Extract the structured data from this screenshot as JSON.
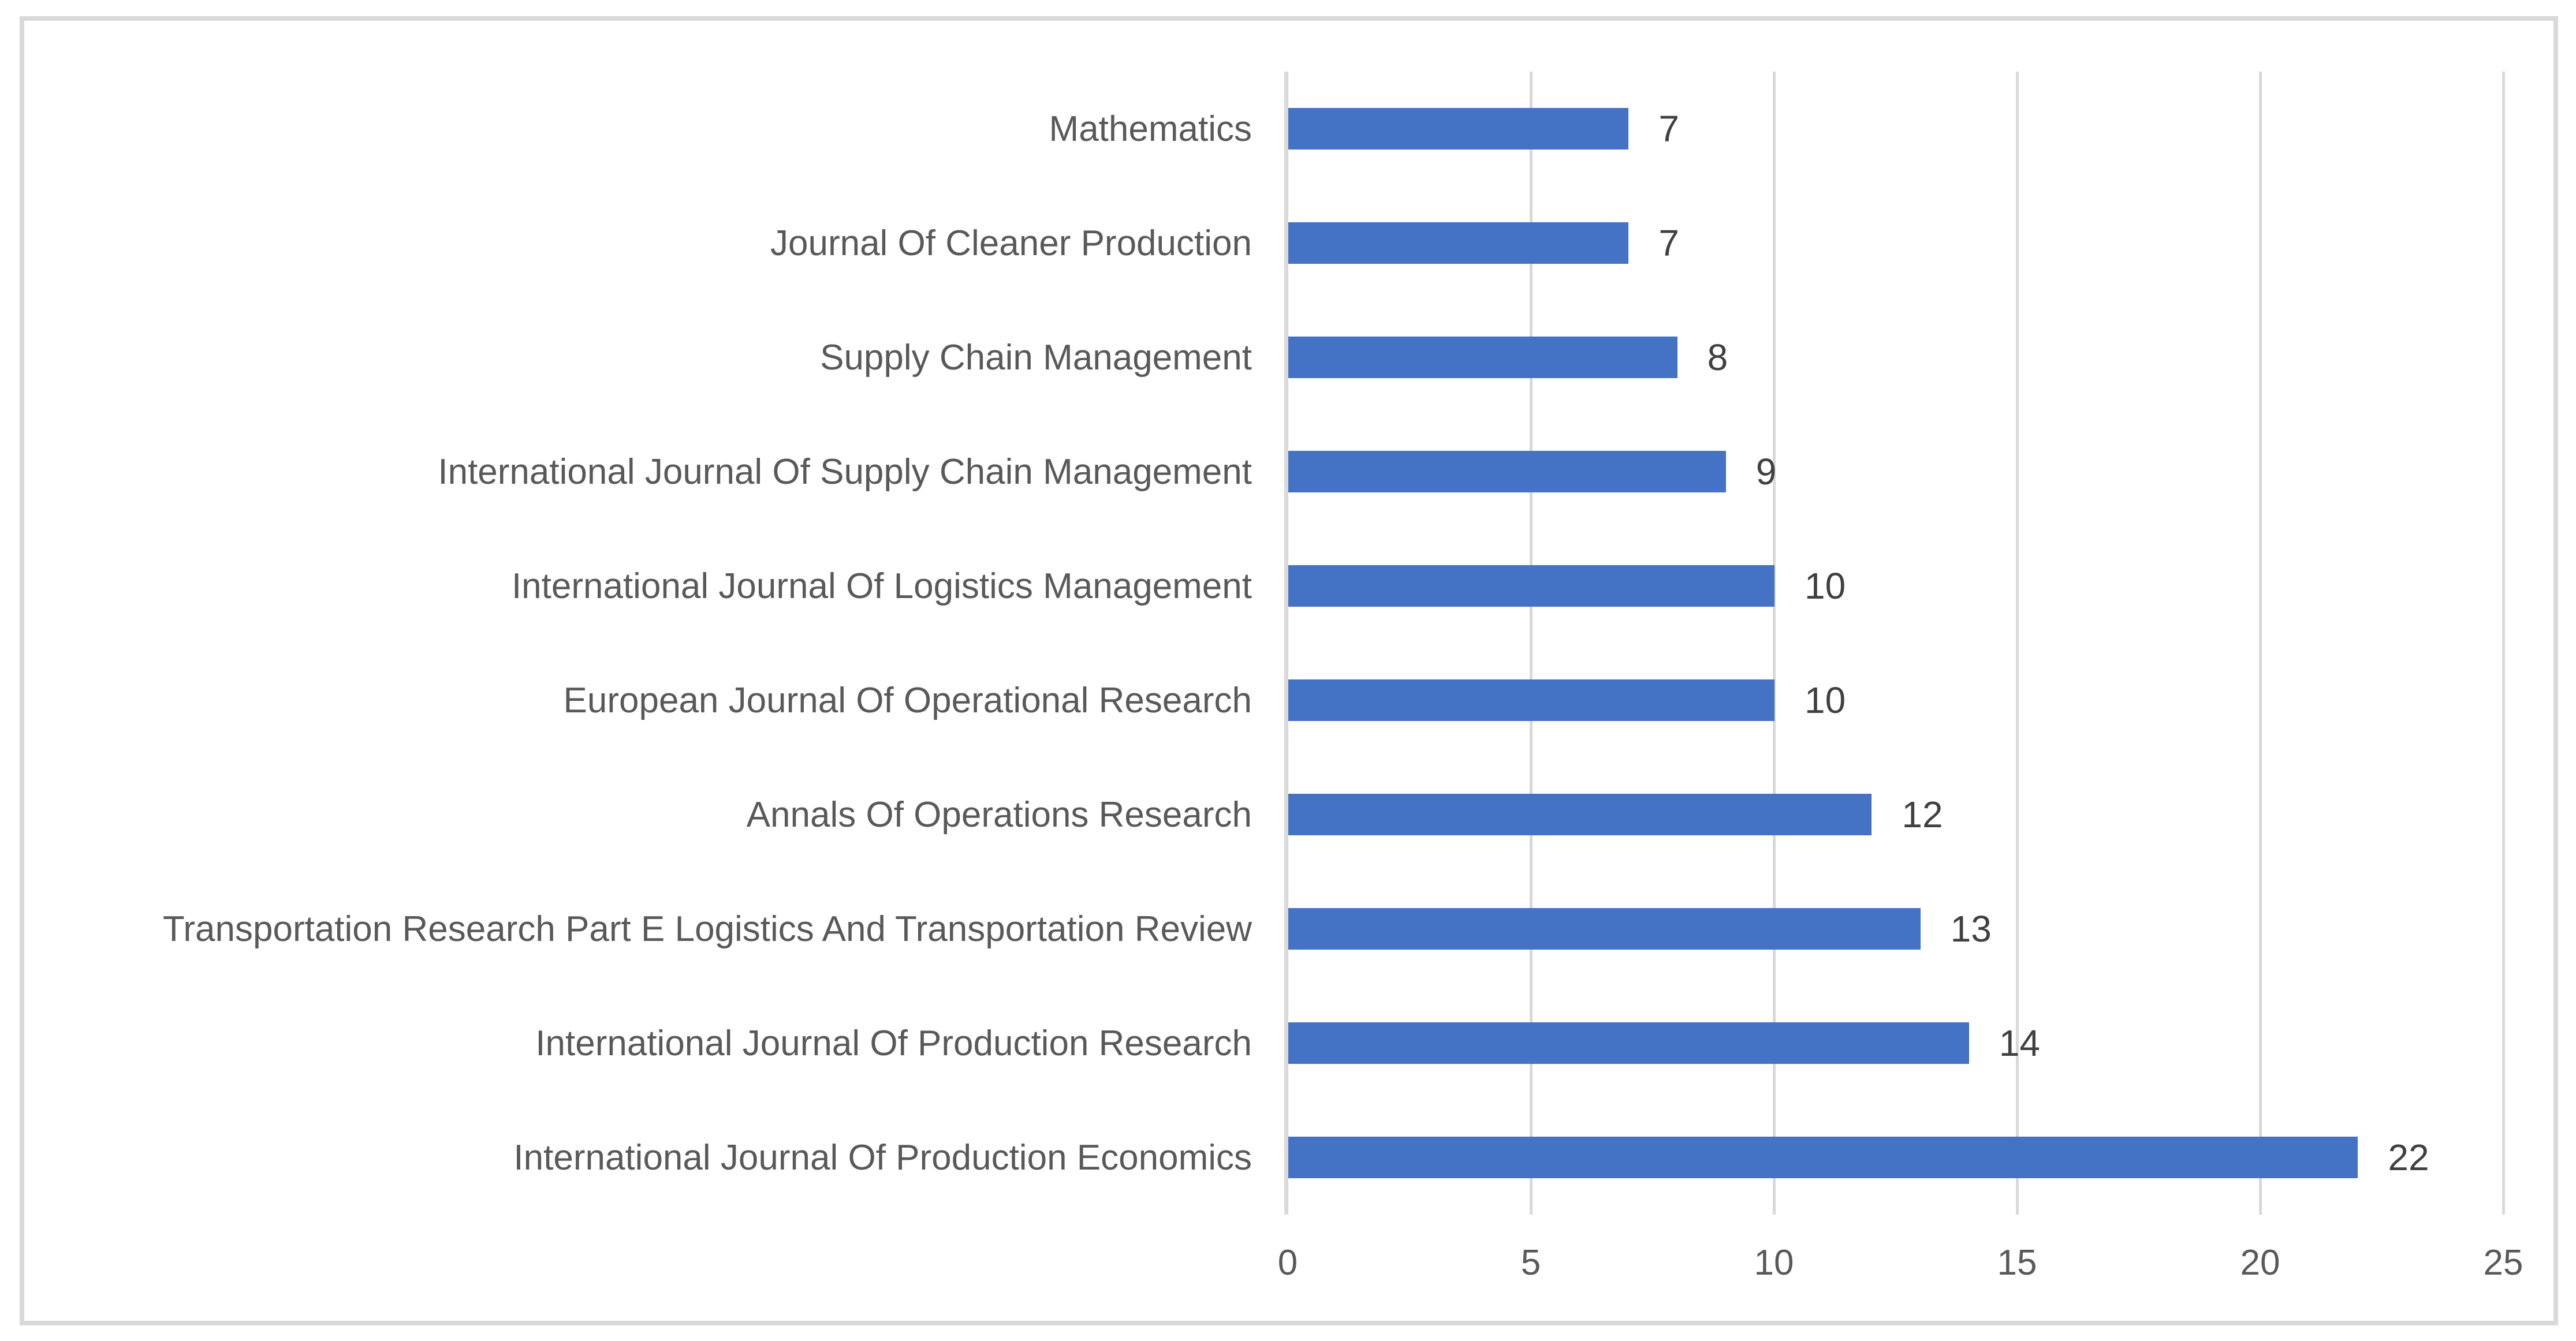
{
  "chart_data": {
    "type": "bar",
    "orientation": "horizontal",
    "title": "",
    "xlabel": "",
    "ylabel": "",
    "categories": [
      "Mathematics",
      "Journal Of Cleaner Production",
      "Supply Chain Management",
      "International Journal Of Supply Chain Management",
      "International Journal Of Logistics Management",
      "European Journal Of Operational Research",
      "Annals Of Operations Research",
      "Transportation Research Part E Logistics And Transportation Review",
      "International Journal Of Production Research",
      "International Journal Of Production Economics"
    ],
    "values": [
      7,
      7,
      8,
      9,
      10,
      10,
      12,
      13,
      14,
      22
    ],
    "data_labels": [
      "7",
      "7",
      "8",
      "9",
      "10",
      "10",
      "12",
      "13",
      "14",
      "22"
    ],
    "xlim": [
      0,
      25
    ],
    "xticks": [
      0,
      5,
      10,
      15,
      20,
      25
    ],
    "grid": true,
    "legend": false,
    "gridline_orientation": "vertical"
  },
  "colors": {
    "bar": "#4472C4",
    "category_text": "#595959",
    "tick_text": "#595959",
    "value_text": "#404040",
    "gridline": "#D9D9D9",
    "frame_border": "#D9D9D9",
    "background": "#FFFFFF"
  }
}
